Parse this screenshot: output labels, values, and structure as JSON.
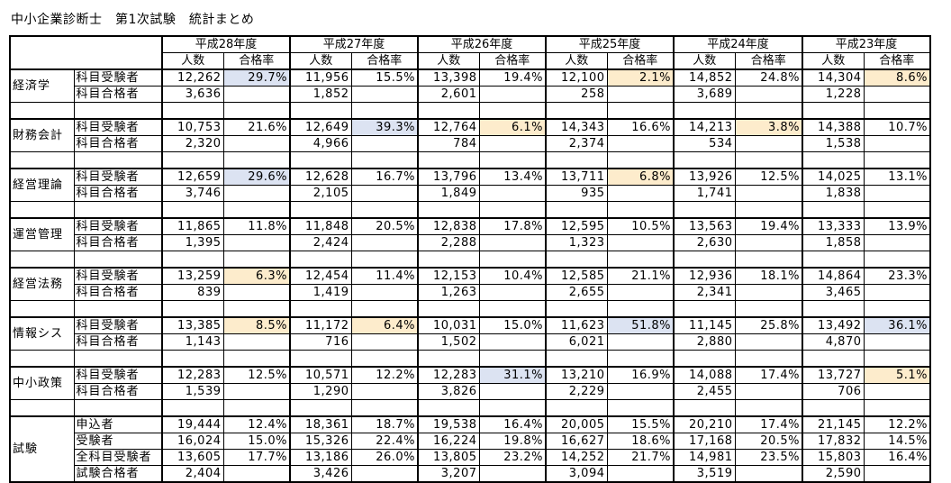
{
  "title": "中小企業診断士　第1次試験　統計まとめ",
  "header": {
    "years": [
      "平成28年度",
      "平成27年度",
      "平成26年度",
      "平成25年度",
      "平成24年度",
      "平成23年度"
    ],
    "count_label": "人数",
    "rate_label": "合格率"
  },
  "colors": {
    "highlight_high": "#dce3f2",
    "highlight_low": "#fdeccc"
  },
  "subjects": [
    {
      "name": "経済学",
      "rows": [
        {
          "label": "科目受験者",
          "cells": [
            {
              "n": "12,262",
              "r": "29.7%",
              "h": "blue"
            },
            {
              "n": "11,956",
              "r": "15.5%"
            },
            {
              "n": "13,398",
              "r": "19.4%"
            },
            {
              "n": "12,100",
              "r": "2.1%",
              "h": "yellow"
            },
            {
              "n": "14,852",
              "r": "24.8%"
            },
            {
              "n": "14,304",
              "r": "8.6%",
              "h": "yellow"
            }
          ]
        },
        {
          "label": "科目合格者",
          "cells": [
            {
              "n": "3,636"
            },
            {
              "n": "1,852"
            },
            {
              "n": "2,601"
            },
            {
              "n": "258"
            },
            {
              "n": "3,689"
            },
            {
              "n": "1,228"
            }
          ]
        }
      ]
    },
    {
      "name": "財務会計",
      "rows": [
        {
          "label": "科目受験者",
          "cells": [
            {
              "n": "10,753",
              "r": "21.6%"
            },
            {
              "n": "12,649",
              "r": "39.3%",
              "h": "blue"
            },
            {
              "n": "12,764",
              "r": "6.1%",
              "h": "yellow"
            },
            {
              "n": "14,343",
              "r": "16.6%"
            },
            {
              "n": "14,213",
              "r": "3.8%",
              "h": "yellow"
            },
            {
              "n": "14,388",
              "r": "10.7%"
            }
          ]
        },
        {
          "label": "科目合格者",
          "cells": [
            {
              "n": "2,320"
            },
            {
              "n": "4,966"
            },
            {
              "n": "784"
            },
            {
              "n": "2,374"
            },
            {
              "n": "534"
            },
            {
              "n": "1,538"
            }
          ]
        }
      ]
    },
    {
      "name": "経営理論",
      "rows": [
        {
          "label": "科目受験者",
          "cells": [
            {
              "n": "12,659",
              "r": "29.6%",
              "h": "blue"
            },
            {
              "n": "12,628",
              "r": "16.7%"
            },
            {
              "n": "13,796",
              "r": "13.4%"
            },
            {
              "n": "13,711",
              "r": "6.8%",
              "h": "yellow"
            },
            {
              "n": "13,926",
              "r": "12.5%"
            },
            {
              "n": "14,025",
              "r": "13.1%"
            }
          ]
        },
        {
          "label": "科目合格者",
          "cells": [
            {
              "n": "3,746"
            },
            {
              "n": "2,105"
            },
            {
              "n": "1,849"
            },
            {
              "n": "935"
            },
            {
              "n": "1,741"
            },
            {
              "n": "1,838"
            }
          ]
        }
      ]
    },
    {
      "name": "運営管理",
      "rows": [
        {
          "label": "科目受験者",
          "cells": [
            {
              "n": "11,865",
              "r": "11.8%"
            },
            {
              "n": "11,848",
              "r": "20.5%"
            },
            {
              "n": "12,838",
              "r": "17.8%"
            },
            {
              "n": "12,595",
              "r": "10.5%"
            },
            {
              "n": "13,563",
              "r": "19.4%"
            },
            {
              "n": "13,333",
              "r": "13.9%"
            }
          ]
        },
        {
          "label": "科目合格者",
          "cells": [
            {
              "n": "1,395"
            },
            {
              "n": "2,424"
            },
            {
              "n": "2,288"
            },
            {
              "n": "1,323"
            },
            {
              "n": "2,630"
            },
            {
              "n": "1,858"
            }
          ]
        }
      ]
    },
    {
      "name": "経営法務",
      "rows": [
        {
          "label": "科目受験者",
          "cells": [
            {
              "n": "13,259",
              "r": "6.3%",
              "h": "yellow"
            },
            {
              "n": "12,454",
              "r": "11.4%"
            },
            {
              "n": "12,153",
              "r": "10.4%"
            },
            {
              "n": "12,585",
              "r": "21.1%"
            },
            {
              "n": "12,936",
              "r": "18.1%"
            },
            {
              "n": "14,864",
              "r": "23.3%"
            }
          ]
        },
        {
          "label": "科目合格者",
          "cells": [
            {
              "n": "839"
            },
            {
              "n": "1,419"
            },
            {
              "n": "1,263"
            },
            {
              "n": "2,655"
            },
            {
              "n": "2,341"
            },
            {
              "n": "3,465"
            }
          ]
        }
      ]
    },
    {
      "name": "情報シス",
      "rows": [
        {
          "label": "科目受験者",
          "cells": [
            {
              "n": "13,385",
              "r": "8.5%",
              "h": "yellow"
            },
            {
              "n": "11,172",
              "r": "6.4%",
              "h": "yellow"
            },
            {
              "n": "10,031",
              "r": "15.0%"
            },
            {
              "n": "11,623",
              "r": "51.8%",
              "h": "blue"
            },
            {
              "n": "11,145",
              "r": "25.8%"
            },
            {
              "n": "13,492",
              "r": "36.1%",
              "h": "blue"
            }
          ]
        },
        {
          "label": "科目合格者",
          "cells": [
            {
              "n": "1,143"
            },
            {
              "n": "716"
            },
            {
              "n": "1,502"
            },
            {
              "n": "6,021"
            },
            {
              "n": "2,880"
            },
            {
              "n": "4,870"
            }
          ]
        }
      ]
    },
    {
      "name": "中小政策",
      "rows": [
        {
          "label": "科目受験者",
          "cells": [
            {
              "n": "12,283",
              "r": "12.5%"
            },
            {
              "n": "10,571",
              "r": "12.2%"
            },
            {
              "n": "12,283",
              "r": "31.1%",
              "h": "blue"
            },
            {
              "n": "13,210",
              "r": "16.9%"
            },
            {
              "n": "14,088",
              "r": "17.4%"
            },
            {
              "n": "13,727",
              "r": "5.1%",
              "h": "yellow"
            }
          ]
        },
        {
          "label": "科目合格者",
          "cells": [
            {
              "n": "1,539"
            },
            {
              "n": "1,290"
            },
            {
              "n": "3,826"
            },
            {
              "n": "2,229"
            },
            {
              "n": "2,455"
            },
            {
              "n": "706"
            }
          ]
        }
      ]
    }
  ],
  "exam": {
    "name": "試験",
    "rows": [
      {
        "label": "申込者",
        "cells": [
          {
            "n": "19,444",
            "r": "12.4%"
          },
          {
            "n": "18,361",
            "r": "18.7%"
          },
          {
            "n": "19,538",
            "r": "16.4%"
          },
          {
            "n": "20,005",
            "r": "15.5%"
          },
          {
            "n": "20,210",
            "r": "17.4%"
          },
          {
            "n": "21,145",
            "r": "12.2%"
          }
        ]
      },
      {
        "label": "受験者",
        "cells": [
          {
            "n": "16,024",
            "r": "15.0%"
          },
          {
            "n": "15,326",
            "r": "22.4%"
          },
          {
            "n": "16,224",
            "r": "19.8%"
          },
          {
            "n": "16,627",
            "r": "18.6%"
          },
          {
            "n": "17,168",
            "r": "20.5%"
          },
          {
            "n": "17,832",
            "r": "14.5%"
          }
        ]
      },
      {
        "label": "全科目受験者",
        "cells": [
          {
            "n": "13,605",
            "r": "17.7%"
          },
          {
            "n": "13,186",
            "r": "26.0%"
          },
          {
            "n": "13,805",
            "r": "23.2%"
          },
          {
            "n": "14,252",
            "r": "21.7%"
          },
          {
            "n": "14,981",
            "r": "23.5%"
          },
          {
            "n": "15,803",
            "r": "16.4%"
          }
        ]
      },
      {
        "label": "試験合格者",
        "cells": [
          {
            "n": "2,404"
          },
          {
            "n": "3,426"
          },
          {
            "n": "3,207"
          },
          {
            "n": "3,094"
          },
          {
            "n": "3,519"
          },
          {
            "n": "2,590"
          }
        ]
      }
    ]
  }
}
